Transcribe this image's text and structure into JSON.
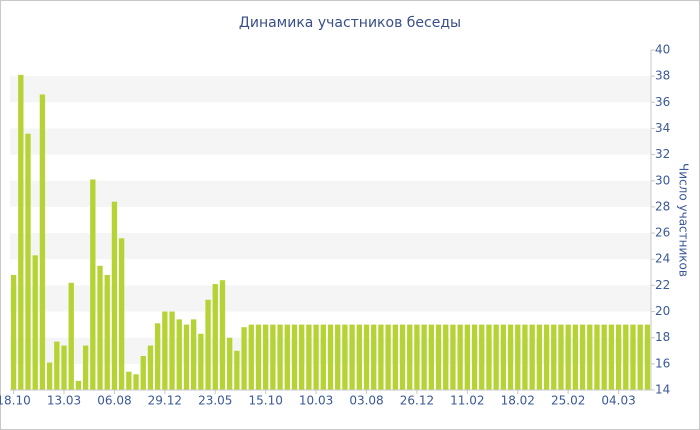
{
  "chart_data": {
    "type": "bar",
    "title": "Динамика участников беседы",
    "y_label": "Число участников",
    "categories": [
      "18.10",
      null,
      null,
      null,
      null,
      null,
      null,
      "13.03",
      null,
      null,
      null,
      null,
      null,
      null,
      "06.08",
      null,
      null,
      null,
      null,
      null,
      null,
      "29.12",
      null,
      null,
      null,
      null,
      null,
      null,
      "23.05",
      null,
      null,
      null,
      null,
      null,
      null,
      "15.10",
      null,
      null,
      null,
      null,
      null,
      null,
      "10.03",
      null,
      null,
      null,
      null,
      null,
      null,
      "03.08",
      null,
      null,
      null,
      null,
      null,
      null,
      "26.12",
      null,
      null,
      null,
      null,
      null,
      null,
      "11.02",
      null,
      null,
      null,
      null,
      null,
      null,
      "18.02",
      null,
      null,
      null,
      null,
      null,
      null,
      "25.02",
      null,
      null,
      null,
      null,
      null,
      null,
      "04.03",
      null,
      null,
      null,
      null
    ],
    "values": [
      22.8,
      38.1,
      33.6,
      24.3,
      36.6,
      16.1,
      17.7,
      17.4,
      22.2,
      14.7,
      17.4,
      30.1,
      23.5,
      22.8,
      28.4,
      25.6,
      15.4,
      15.2,
      16.6,
      17.4,
      19.1,
      20,
      20,
      19.4,
      19,
      19.4,
      18.3,
      20.9,
      22.1,
      22.4,
      18,
      17,
      18.8,
      19,
      19,
      19,
      19,
      19,
      19,
      19,
      19,
      19,
      19,
      19,
      19,
      19,
      19,
      19,
      19,
      19,
      19,
      19,
      19,
      19,
      19,
      19,
      19,
      19,
      19,
      19,
      19,
      19,
      19,
      19,
      19,
      19,
      19,
      19,
      19,
      19,
      19,
      19,
      19,
      19,
      19,
      19,
      19,
      19,
      19,
      19,
      19,
      19,
      19,
      19,
      19,
      19,
      19,
      19,
      19
    ],
    "color": "#b5d334",
    "ylim": [
      14,
      40
    ],
    "yticks": [
      14,
      16,
      18,
      20,
      22,
      24,
      26,
      28,
      30,
      32,
      34,
      36,
      38,
      40
    ],
    "grid": "bands",
    "y_axis_side": "right"
  }
}
